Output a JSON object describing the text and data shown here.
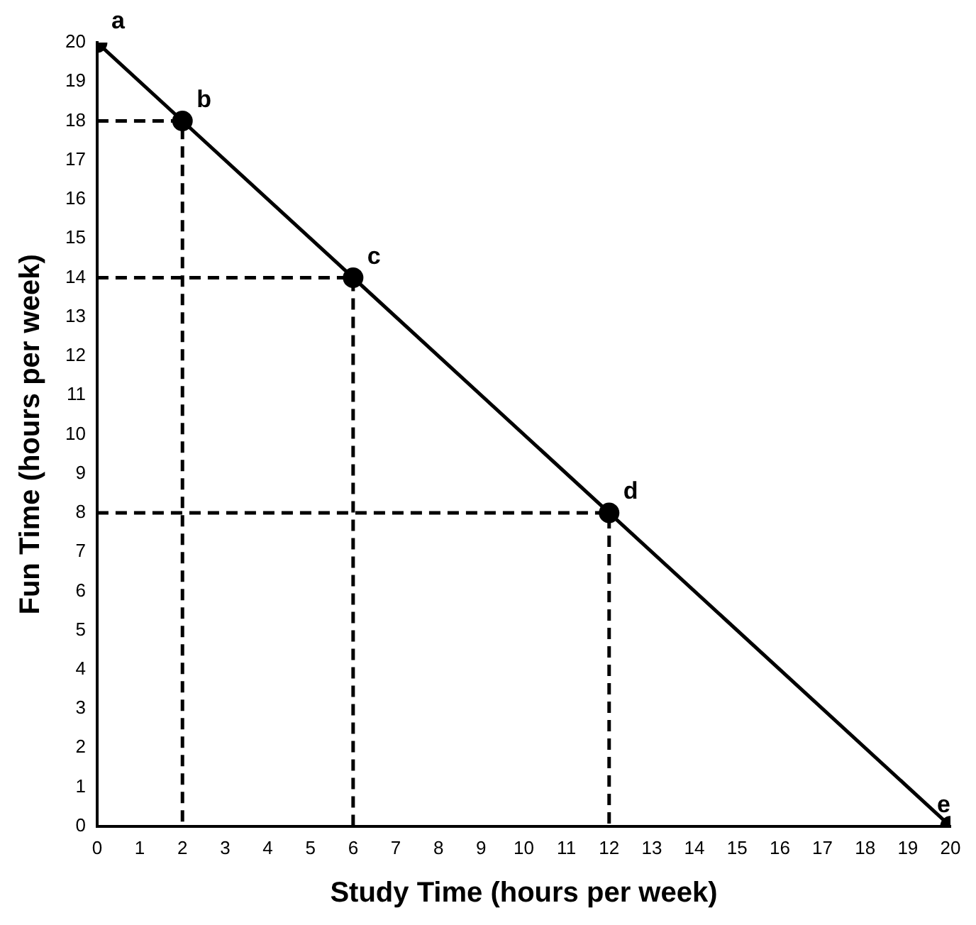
{
  "chart_data": {
    "type": "line",
    "xlabel": "Study Time (hours per week)",
    "ylabel": "Fun Time (hours per week)",
    "xlim": [
      0,
      20
    ],
    "xticks": [
      0,
      1,
      2,
      3,
      4,
      5,
      6,
      7,
      8,
      9,
      10,
      11,
      12,
      13,
      14,
      15,
      16,
      17,
      18,
      19,
      20
    ],
    "ylim": [
      0,
      20
    ],
    "yticks": [
      0,
      1,
      2,
      3,
      4,
      5,
      6,
      7,
      8,
      9,
      10,
      11,
      12,
      13,
      14,
      15,
      16,
      17,
      18,
      19,
      20
    ],
    "grid": false,
    "legend": false,
    "series": [
      {
        "color": "#000000",
        "marker": "circle",
        "line_style": "solid",
        "x": [
          0,
          2,
          6,
          12,
          20
        ],
        "values": [
          20,
          18,
          14,
          8,
          0
        ]
      },
      {
        "color": "#000000",
        "marker": "none",
        "line_style": "dashed",
        "x": [
          0,
          2,
          2
        ],
        "values": [
          18,
          18,
          0
        ]
      },
      {
        "color": "#000000",
        "marker": "none",
        "line_style": "dashed",
        "x": [
          0,
          6,
          6
        ],
        "values": [
          14,
          14,
          0
        ]
      },
      {
        "color": "#000000",
        "marker": "none",
        "line_style": "dashed",
        "x": [
          0,
          12,
          12
        ],
        "values": [
          8,
          8,
          0
        ]
      }
    ],
    "annotations": [
      {
        "text": "a",
        "x": 0,
        "y": 20
      },
      {
        "text": "b",
        "x": 2,
        "y": 18
      },
      {
        "text": "c",
        "x": 6,
        "y": 14
      },
      {
        "text": "d",
        "x": 12,
        "y": 8
      },
      {
        "text": "e",
        "x": 20,
        "y": 0
      }
    ]
  }
}
